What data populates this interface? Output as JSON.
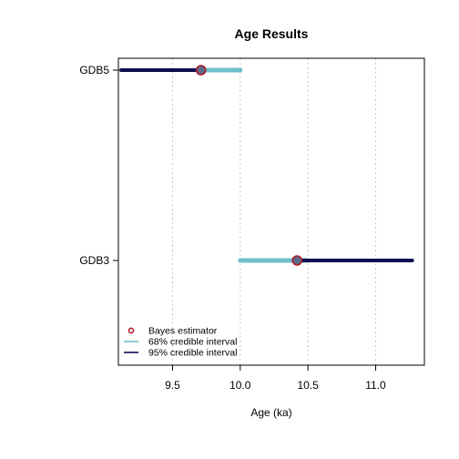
{
  "chart_data": {
    "type": "interval",
    "title": "Age Results",
    "xlabel": "Age (ka)",
    "ylabel": "",
    "xlim": [
      9.1,
      11.36
    ],
    "x_ticks": [
      9.5,
      10.0,
      10.5,
      11.0
    ],
    "x_tick_labels": [
      "9.5",
      "10.0",
      "10.5",
      "11.0"
    ],
    "vertical_grid": true,
    "categories": [
      "GDB5",
      "GDB3"
    ],
    "samples": [
      {
        "label": "GDB5",
        "estimate": 9.71,
        "ci68": [
          9.71,
          10.0
        ],
        "ci95": [
          9.12,
          9.72
        ]
      },
      {
        "label": "GDB3",
        "estimate": 10.42,
        "ci68": [
          10.0,
          10.5
        ],
        "ci95": [
          10.4,
          11.27
        ]
      }
    ],
    "legend": {
      "position": "bottom-left",
      "entries": [
        {
          "key": "estimator",
          "label": "Bayes estimator"
        },
        {
          "key": "ci68",
          "label": "68% credible interval"
        },
        {
          "key": "ci95",
          "label": "95% credible interval"
        }
      ]
    },
    "colors": {
      "estimator_fill": "#5a6b8a",
      "estimator_stroke": "#b01a26",
      "ci68": "#6fc0c8",
      "ci95": "#0d0d52",
      "grid": "#c8c8c8"
    }
  }
}
